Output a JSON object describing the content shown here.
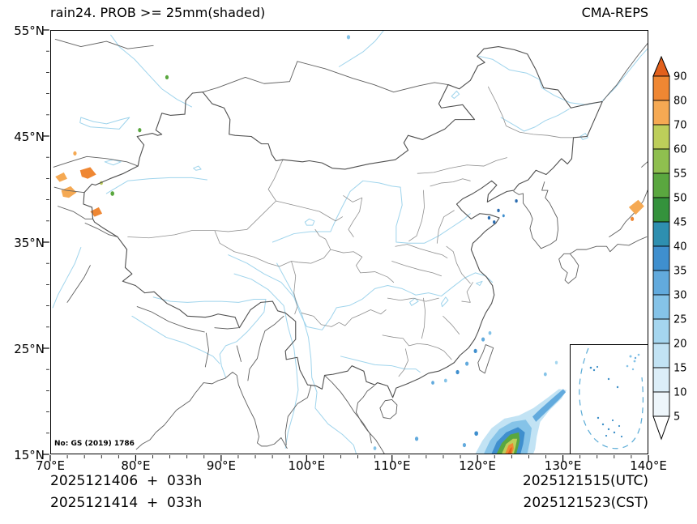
{
  "header": {
    "title_left": "rain24. PROB >= 25mm(shaded)",
    "title_right": "CMA-REPS"
  },
  "axes": {
    "x_ticks": [
      "70°E",
      "80°E",
      "90°E",
      "100°E",
      "110°E",
      "120°E",
      "130°E",
      "140°E"
    ],
    "y_ticks": [
      "55°N",
      "45°N",
      "35°N",
      "25°N",
      "15°N"
    ],
    "x_range_deg": [
      70,
      140
    ],
    "y_range_deg": [
      15,
      55
    ]
  },
  "colorbar": {
    "labels_top_to_bottom": [
      "90",
      "80",
      "70",
      "60",
      "55",
      "50",
      "45",
      "40",
      "35",
      "30",
      "25",
      "20",
      "15",
      "10",
      "5"
    ],
    "segment_colors_top_to_bottom": [
      "#ef8733",
      "#f5a953",
      "#bdce5a",
      "#8fbf4f",
      "#5aa73f",
      "#34923c",
      "#2e8fb0",
      "#3f8fce",
      "#62aadd",
      "#85c3e8",
      "#a5d6ef",
      "#c2e3f4",
      "#dceef8",
      "#eef6fb"
    ],
    "above_max_color": "#e2601c",
    "below_min_color": "#ffffff"
  },
  "map": {
    "license_badge": "No: GS (2019) 1786",
    "country_border_color": "#5f5f5f",
    "province_border_color": "#8f8f8f",
    "river_color": "#9fd4ec",
    "frame_color": "#000000"
  },
  "footer": {
    "left_lines": [
      "2025121406  +  033h",
      "2025121414  +  033h"
    ],
    "right_lines": [
      "2025121515(UTC)",
      "2025121523(CST)"
    ]
  }
}
